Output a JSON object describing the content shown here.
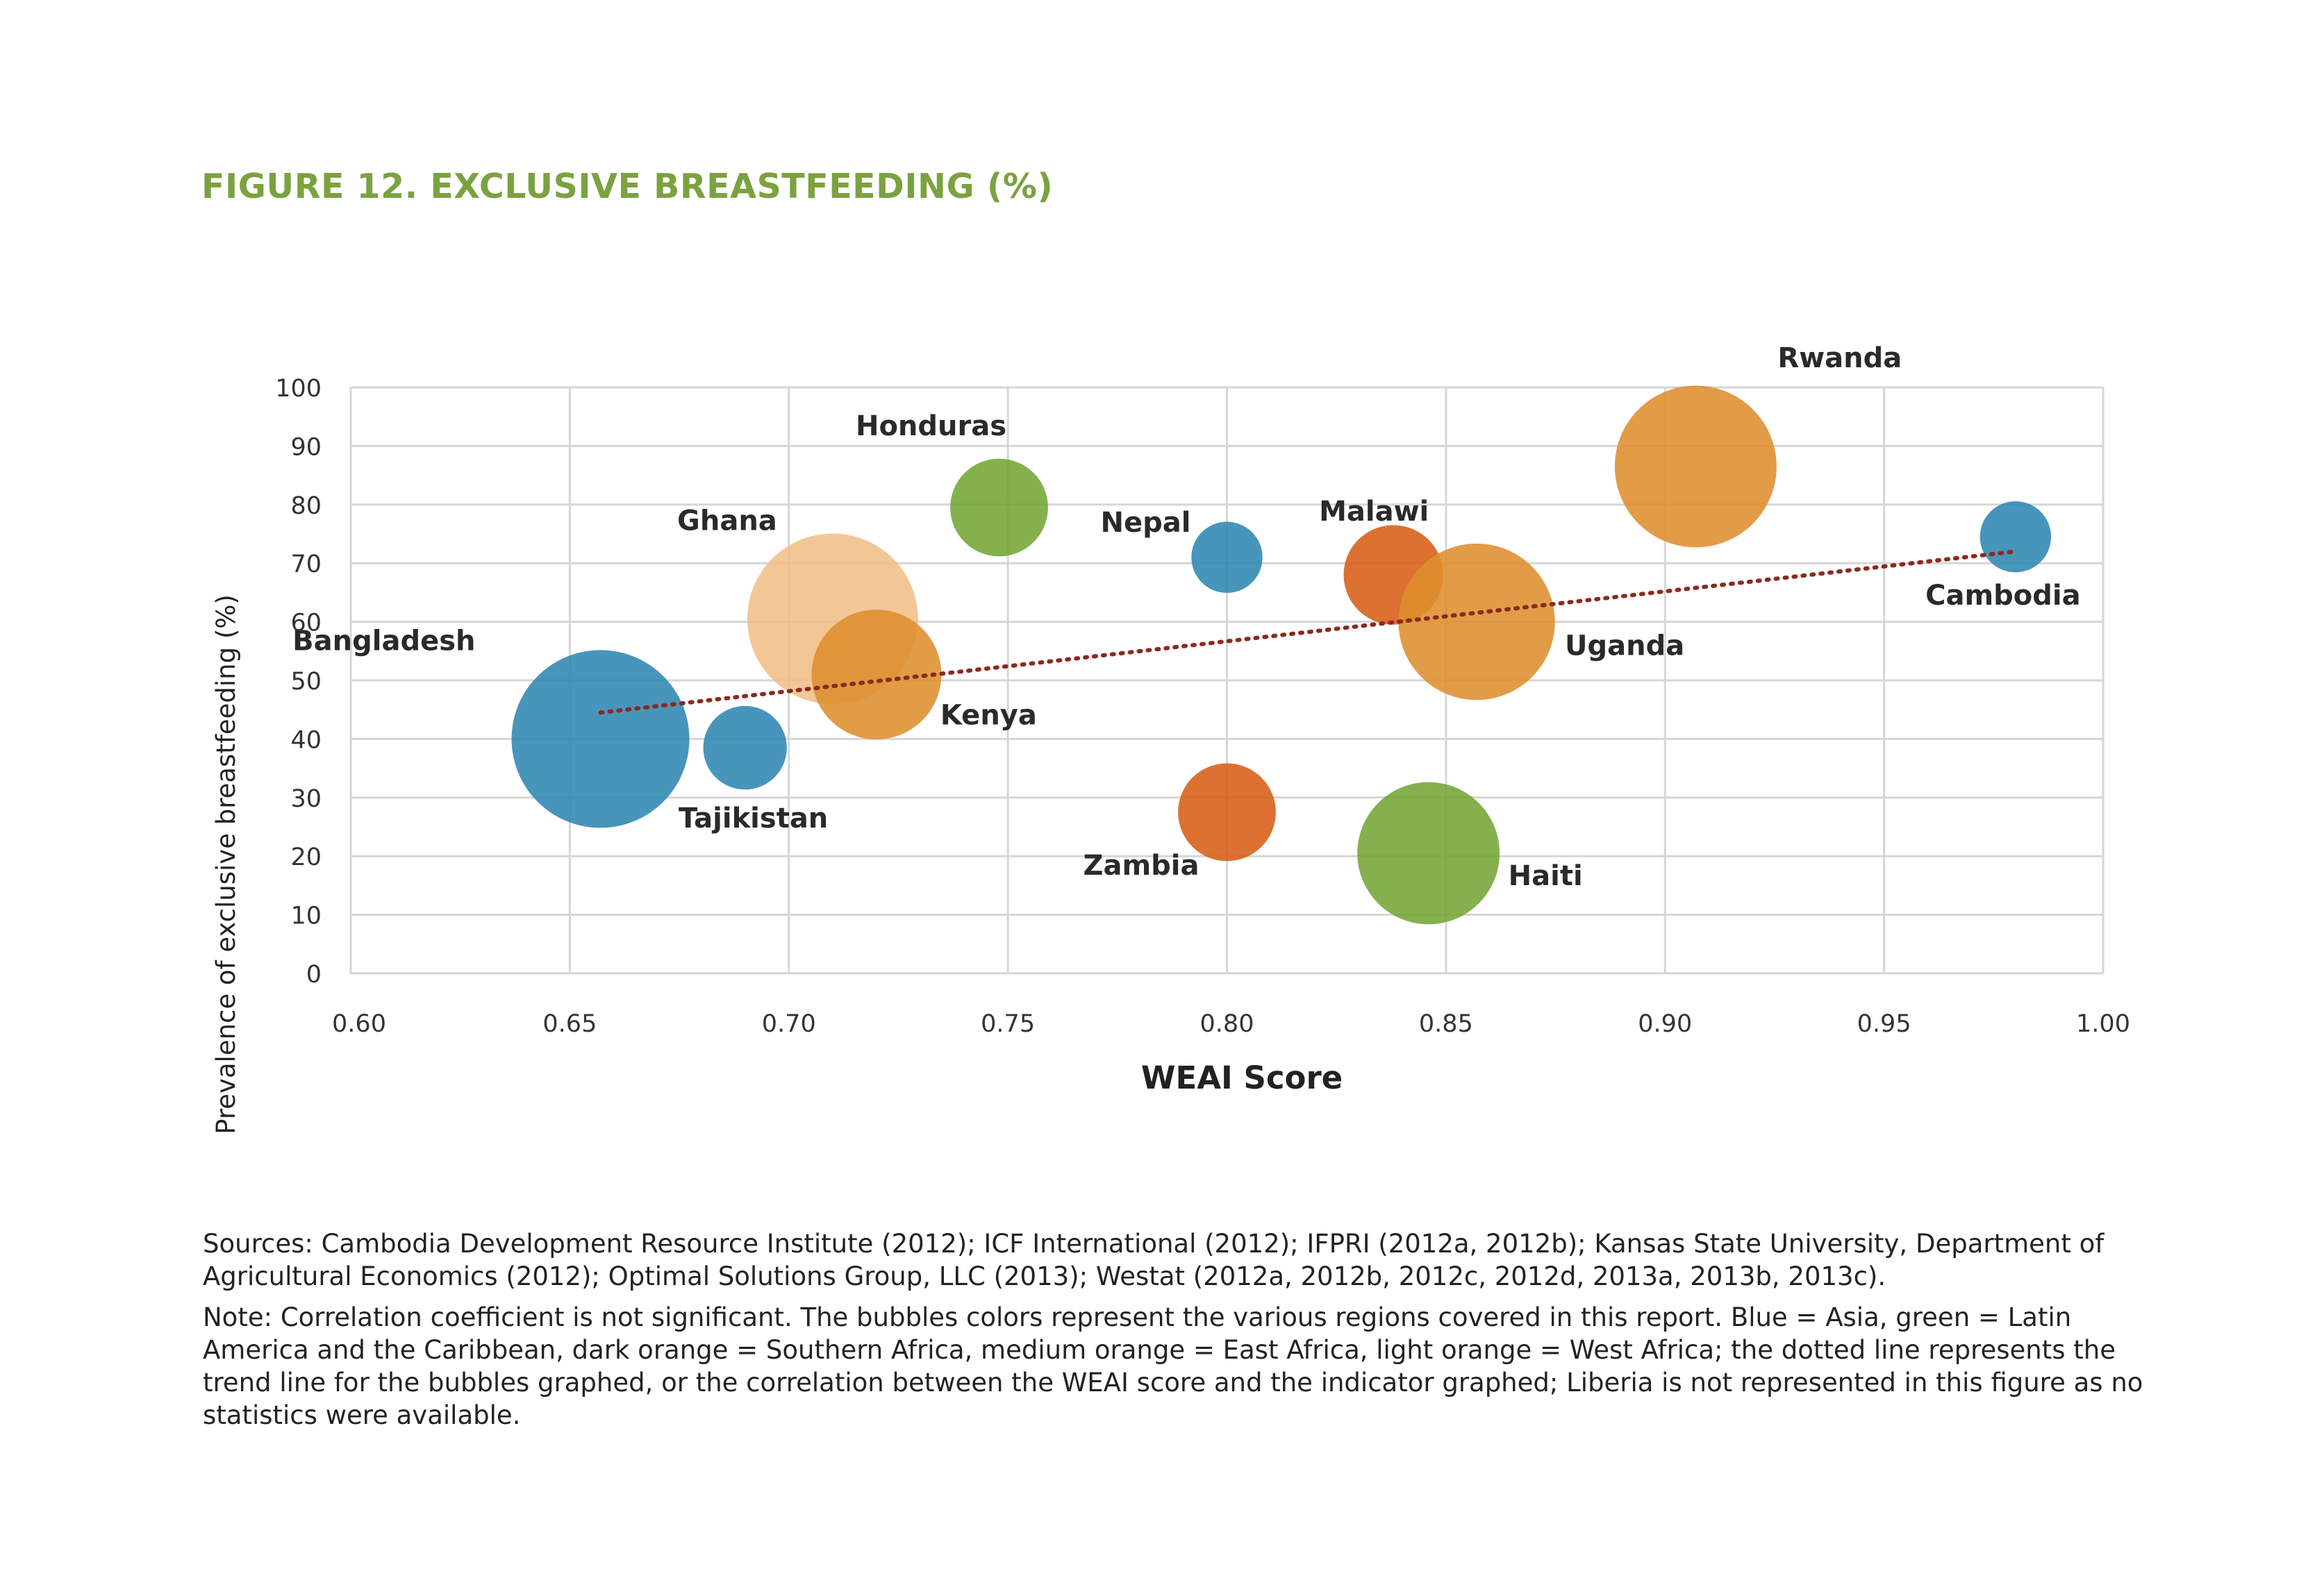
{
  "figure_title": "FIGURE 12. EXCLUSIVE BREASTFEEDING (%)",
  "sources": "Sources: Cambodia Development Resource Institute (2012); ICF International (2012); IFPRI (2012a, 2012b); Kansas State University, Department of Agricultural Economics (2012); Optimal Solutions Group, LLC (2013); Westat (2012a, 2012b, 2012c, 2012d, 2013a, 2013b, 2013c).",
  "note": "Note: Correlation coefficient is not significant. The bubbles colors represent the various regions covered in this report. Blue = Asia, green = Latin America and the Caribbean, dark orange = Southern Africa, medium orange = East Africa, light orange = West Africa; the dotted line represents the trend line for the bubbles graphed, or the correlation between the WEAI score and the indicator graphed; Liberia is not represented in this figure as no statistics were available.",
  "colors": {
    "asia": "#2f86b2",
    "latin_america": "#74a535",
    "southern_africa": "#d75d16",
    "east_africa": "#de8e2e",
    "west_africa": "#f1bd83",
    "trend": "#8b2a1e",
    "grid": "#d6d6d6"
  },
  "chart_data": {
    "type": "scatter",
    "xlabel": "WEAI Score",
    "ylabel": "Prevalence of exclusive breastfeeding (%)",
    "xlim": [
      0.6,
      1.0
    ],
    "ylim": [
      0,
      100
    ],
    "x_ticks": [
      "0.60",
      "0.65",
      "0.70",
      "0.75",
      "0.80",
      "0.85",
      "0.90",
      "0.95",
      "1.00"
    ],
    "y_ticks": [
      "0",
      "10",
      "20",
      "30",
      "40",
      "50",
      "60",
      "70",
      "80",
      "90",
      "100"
    ],
    "grid": true,
    "points": [
      {
        "label": "Bangladesh",
        "x": 0.657,
        "y": 40.0,
        "size": 1.0,
        "region": "asia"
      },
      {
        "label": "Tajikistan",
        "x": 0.69,
        "y": 38.5,
        "size": 0.47,
        "region": "asia"
      },
      {
        "label": "Ghana",
        "x": 0.71,
        "y": 60.5,
        "size": 0.96,
        "region": "west_africa"
      },
      {
        "label": "Kenya",
        "x": 0.72,
        "y": 51.0,
        "size": 0.73,
        "region": "east_africa"
      },
      {
        "label": "Honduras",
        "x": 0.748,
        "y": 79.5,
        "size": 0.55,
        "region": "latin_america"
      },
      {
        "label": "Nepal",
        "x": 0.8,
        "y": 71.0,
        "size": 0.4,
        "region": "asia"
      },
      {
        "label": "Zambia",
        "x": 0.8,
        "y": 27.5,
        "size": 0.55,
        "region": "southern_africa"
      },
      {
        "label": "Malawi",
        "x": 0.838,
        "y": 68.0,
        "size": 0.56,
        "region": "southern_africa"
      },
      {
        "label": "Haiti",
        "x": 0.846,
        "y": 20.5,
        "size": 0.8,
        "region": "latin_america"
      },
      {
        "label": "Uganda",
        "x": 0.857,
        "y": 60.0,
        "size": 0.88,
        "region": "east_africa"
      },
      {
        "label": "Rwanda",
        "x": 0.907,
        "y": 86.5,
        "size": 0.91,
        "region": "east_africa"
      },
      {
        "label": "Cambodia",
        "x": 0.98,
        "y": 74.5,
        "size": 0.4,
        "region": "asia"
      }
    ],
    "trend_line": {
      "x": [
        0.657,
        0.98
      ],
      "y": [
        44.5,
        72.0
      ]
    }
  }
}
